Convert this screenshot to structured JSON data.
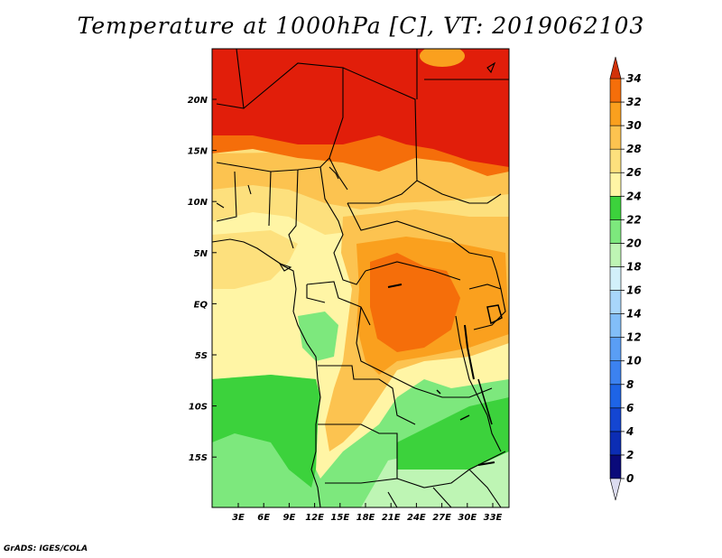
{
  "title": "Temperature at 1000hPa [C], VT: 2019062103",
  "credit": "GrADS: IGES/COLA",
  "map": {
    "lon_ticks": [
      "3E",
      "6E",
      "9E",
      "12E",
      "15E",
      "18E",
      "21E",
      "24E",
      "27E",
      "30E",
      "33E"
    ],
    "lat_ticks": [
      "20N",
      "15N",
      "10N",
      "5N",
      "EQ",
      "5S",
      "10S",
      "15S"
    ]
  },
  "colorbar": {
    "levels": [
      "0",
      "2",
      "4",
      "6",
      "8",
      "10",
      "12",
      "14",
      "16",
      "18",
      "20",
      "22",
      "24",
      "26",
      "28",
      "30",
      "32",
      "34"
    ],
    "colors": [
      "#0a0a7a",
      "#0c2db4",
      "#1446d2",
      "#1e64e6",
      "#3c82f0",
      "#5a9ef5",
      "#82bef8",
      "#a8d6fb",
      "#d2f0fa",
      "#bef5b4",
      "#7de87d",
      "#3cd23c",
      "#fff5a5",
      "#fde07d",
      "#fcc350",
      "#faa01e",
      "#f56e0a",
      "#e11e0a",
      "#d2320a"
    ],
    "under_color": "#dcdcf0",
    "over_color": "#d2320a"
  }
}
